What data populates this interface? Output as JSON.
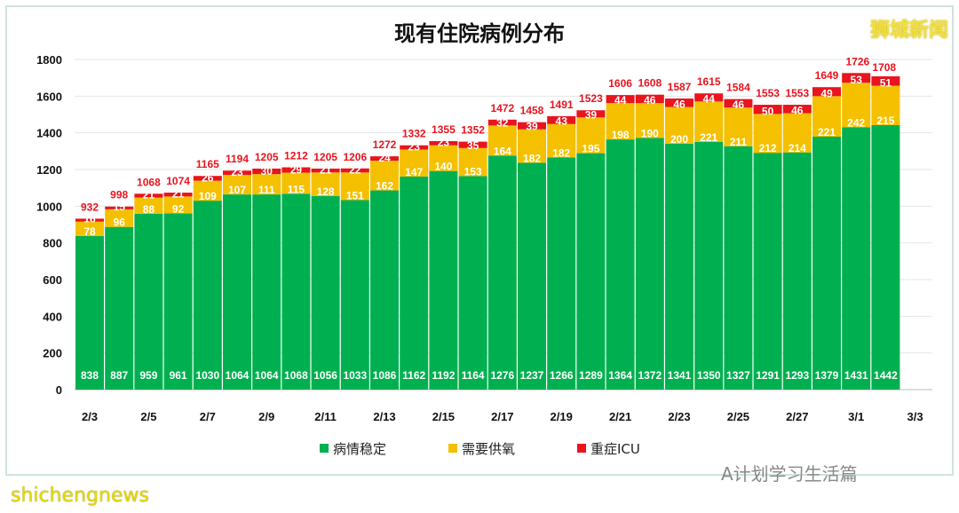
{
  "chart_data": {
    "type": "bar",
    "stacked": true,
    "title": "现有住院病例分布",
    "categories": [
      "2/3",
      "2/4",
      "2/5",
      "2/6",
      "2/7",
      "2/8",
      "2/9",
      "2/10",
      "2/11",
      "2/12",
      "2/13",
      "2/14",
      "2/15",
      "2/16",
      "2/17",
      "2/18",
      "2/19",
      "2/20",
      "2/21",
      "2/22",
      "2/23",
      "2/24",
      "2/25",
      "2/26",
      "2/27",
      "2/28",
      "3/1",
      "3/2"
    ],
    "xtick_labels": [
      "2/3",
      "2/5",
      "2/7",
      "2/9",
      "2/11",
      "2/13",
      "2/15",
      "2/17",
      "2/19",
      "2/21",
      "2/23",
      "2/25",
      "2/27",
      "3/1",
      "3/3"
    ],
    "ylim": [
      0,
      1800
    ],
    "yticks": [
      0,
      200,
      400,
      600,
      800,
      1000,
      1200,
      1400,
      1600,
      1800
    ],
    "legend_position": "bottom",
    "grid": true,
    "series": [
      {
        "name": "病情稳定",
        "color": "#00b050",
        "values": [
          838,
          887,
          959,
          961,
          1030,
          1064,
          1064,
          1068,
          1056,
          1033,
          1086,
          1162,
          1192,
          1164,
          1276,
          1237,
          1266,
          1289,
          1364,
          1372,
          1341,
          1350,
          1327,
          1291,
          1293,
          1379,
          1431,
          1442
        ]
      },
      {
        "name": "需要供氧",
        "color": "#f5c000",
        "values": [
          78,
          96,
          88,
          92,
          109,
          107,
          111,
          115,
          128,
          151,
          162,
          147,
          140,
          153,
          164,
          182,
          182,
          195,
          198,
          190,
          200,
          221,
          211,
          212,
          214,
          221,
          242,
          215
        ]
      },
      {
        "name": "重症ICU",
        "color": "#e8141e",
        "values": [
          16,
          15,
          21,
          21,
          26,
          23,
          30,
          29,
          21,
          22,
          24,
          23,
          23,
          35,
          32,
          39,
          43,
          39,
          44,
          46,
          46,
          44,
          46,
          50,
          46,
          49,
          53,
          51
        ]
      }
    ],
    "totals": [
      932,
      998,
      1068,
      1074,
      1165,
      1194,
      1205,
      1212,
      1205,
      1206,
      1272,
      1332,
      1355,
      1352,
      1472,
      1458,
      1491,
      1523,
      1606,
      1608,
      1587,
      1615,
      1584,
      1553,
      1553,
      1649,
      1726,
      1708
    ],
    "total_label_color": "#e8141e"
  },
  "watermarks": {
    "top_right": "狮城新闻",
    "bottom_left": "shichengnews",
    "bottom_right": "A计划学习生活篇"
  }
}
